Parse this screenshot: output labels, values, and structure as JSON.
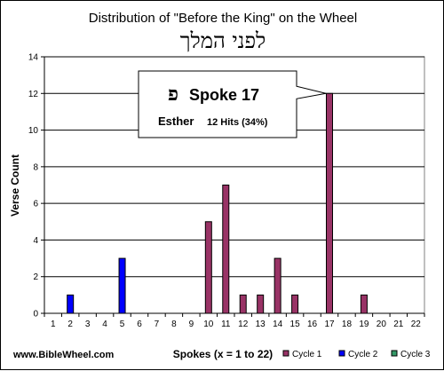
{
  "chart_data": {
    "type": "bar",
    "title": "Distribution of  \"Before the King\"  on the Wheel",
    "subtitle_hebrew": "לפני המלך",
    "ylabel": "Verse Count",
    "xlabel": "Spokes (x = 1 to 22)",
    "ylim": [
      0,
      14
    ],
    "yticks": [
      0,
      2,
      4,
      6,
      8,
      10,
      12,
      14
    ],
    "grid": true,
    "legend_position": "bottom-right",
    "categories": [
      "1",
      "2",
      "3",
      "4",
      "5",
      "6",
      "7",
      "8",
      "9",
      "10",
      "11",
      "12",
      "13",
      "14",
      "15",
      "16",
      "17",
      "18",
      "19",
      "20",
      "21",
      "22"
    ],
    "series": [
      {
        "name": "Cycle 1",
        "color": "#993366",
        "values": [
          0,
          0,
          0,
          0,
          0,
          0,
          0,
          0,
          0,
          5,
          7,
          1,
          1,
          3,
          1,
          0,
          12,
          0,
          1,
          0,
          0,
          0
        ]
      },
      {
        "name": "Cycle 2",
        "color": "#0000ff",
        "values": [
          0,
          1,
          0,
          0,
          3,
          0,
          0,
          0,
          0,
          0,
          0,
          0,
          0,
          0,
          0,
          0,
          0,
          0,
          0,
          0,
          0,
          0
        ]
      },
      {
        "name": "Cycle 3",
        "color": "#339966",
        "values": [
          0,
          0,
          0,
          0,
          0,
          0,
          0,
          0,
          0,
          0,
          0,
          0,
          0,
          0,
          0,
          0,
          0,
          0,
          0,
          0,
          0,
          0
        ]
      }
    ],
    "callout": {
      "hebrew_letter": "פ",
      "spoke_text": "Spoke 17",
      "book": "Esther",
      "hits": "12 Hits (34%)",
      "target_spoke": 17,
      "target_value": 12
    }
  },
  "footer": {
    "website": "www.BibleWheel.com"
  }
}
